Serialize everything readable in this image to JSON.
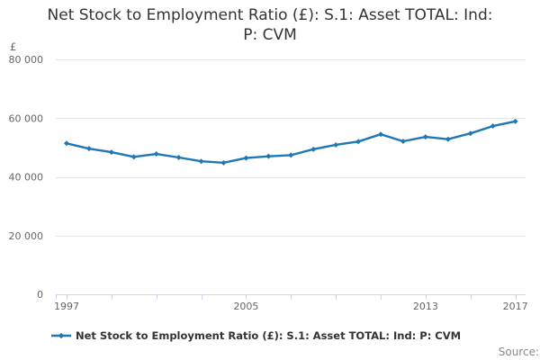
{
  "title": {
    "line1": "Net Stock to Employment Ratio (£): S.1: Asset TOTAL: Ind:",
    "line2": "P: CVM"
  },
  "y_axis": {
    "unit_label": "£",
    "tick_values": [
      0,
      20000,
      40000,
      60000,
      80000
    ],
    "tick_labels": [
      "0",
      "20 000",
      "40 000",
      "60 000",
      "80 000"
    ],
    "max": 80000
  },
  "x_axis": {
    "min": 1997,
    "max": 2017,
    "tick_step": 2,
    "labeled_ticks": [
      1997,
      2005,
      2013,
      2017
    ]
  },
  "legend": {
    "label": "Net Stock to Employment Ratio (£): S.1: Asset TOTAL: Ind: P: CVM"
  },
  "source": {
    "label": "Source:"
  },
  "colors": {
    "line": "#1f77b4",
    "grid": "#e6e6e6",
    "axis": "#ccd6eb",
    "tick_label": "#666666",
    "title_text": "#333333",
    "source_text": "#888888"
  },
  "chart_data": {
    "type": "line",
    "title": "Net Stock to Employment Ratio (£): S.1: Asset TOTAL: Ind: P: CVM",
    "ylabel": "£",
    "ylim": [
      0,
      80000
    ],
    "grid": true,
    "legend_position": "bottom",
    "x": [
      1997,
      1998,
      1999,
      2000,
      2001,
      2002,
      2003,
      2004,
      2005,
      2006,
      2007,
      2008,
      2009,
      2010,
      2011,
      2012,
      2013,
      2014,
      2015,
      2016,
      2017
    ],
    "values": [
      51400,
      49600,
      48400,
      46800,
      47800,
      46600,
      45300,
      44800,
      46400,
      47000,
      47400,
      49400,
      50900,
      52000,
      54500,
      52100,
      53600,
      52800,
      54800,
      57300,
      58900
    ],
    "series_name": "Net Stock to Employment Ratio (£): S.1: Asset TOTAL: Ind: P: CVM"
  }
}
